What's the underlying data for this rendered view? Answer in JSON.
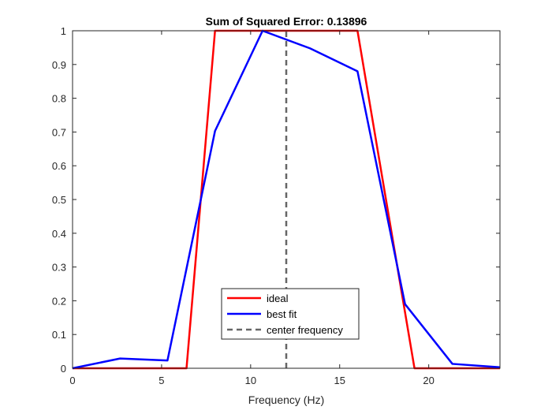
{
  "chart_data": {
    "type": "line",
    "title": "Sum of Squared Error: 0.13896",
    "xlabel": "Frequency (Hz)",
    "ylabel": "",
    "xlim": [
      0,
      24
    ],
    "ylim": [
      0,
      1
    ],
    "xticks": [
      0,
      5,
      10,
      15,
      20
    ],
    "yticks": [
      0,
      0.1,
      0.2,
      0.3,
      0.4,
      0.5,
      0.6,
      0.7,
      0.8,
      0.9,
      1
    ],
    "xtick_labels": [
      "0",
      "5",
      "10",
      "15",
      "20"
    ],
    "ytick_labels": [
      "0",
      "0.1",
      "0.2",
      "0.3",
      "0.4",
      "0.5",
      "0.6",
      "0.7",
      "0.8",
      "0.9",
      "1"
    ],
    "grid": false,
    "legend_position": "bottom-center",
    "series": [
      {
        "name": "ideal",
        "color": "#ff0000",
        "style": "solid",
        "x": [
          0,
          6.4,
          8.0,
          16.0,
          19.2,
          24
        ],
        "y": [
          0,
          0,
          1,
          1,
          0,
          0
        ]
      },
      {
        "name": "best fit",
        "color": "#0000ff",
        "style": "solid",
        "x": [
          0,
          2.67,
          5.33,
          8.0,
          10.67,
          13.33,
          16.0,
          18.67,
          21.33,
          24
        ],
        "y": [
          0,
          0.029,
          0.023,
          0.703,
          1.0,
          0.948,
          0.88,
          0.19,
          0.013,
          0.003
        ]
      },
      {
        "name": "center frequency",
        "color": "#666666",
        "style": "dashed",
        "x": [
          12,
          12
        ],
        "y": [
          0,
          1
        ]
      }
    ]
  }
}
